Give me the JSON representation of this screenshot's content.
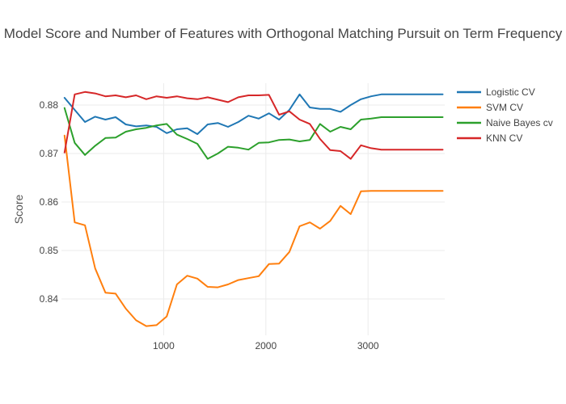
{
  "figure": {
    "title": "Model Score and Number of Features with Orthogonal Matching Pursuit on Term Frequency"
  },
  "chart_data": {
    "type": "line",
    "title": "Model Score and Number of Features with Orthogonal Matching Pursuit on Term Frequency",
    "xlabel": "",
    "ylabel": "Score",
    "grid": true,
    "legend_position": "right",
    "xlim": [
      0,
      3750
    ],
    "ylim": [
      0.8325,
      0.8845
    ],
    "xticks": [
      1000,
      2000,
      3000
    ],
    "yticks": [
      0.84,
      0.85,
      0.86,
      0.87,
      0.88
    ],
    "x": [
      30,
      130,
      230,
      330,
      430,
      530,
      630,
      730,
      830,
      930,
      1030,
      1130,
      1230,
      1330,
      1430,
      1530,
      1630,
      1730,
      1830,
      1930,
      2030,
      2130,
      2230,
      2330,
      2430,
      2530,
      2630,
      2730,
      2830,
      2930,
      3030,
      3130,
      3230,
      3330,
      3430,
      3530,
      3630,
      3730
    ],
    "series": [
      {
        "name": "Logistic CV",
        "color": "#1f77b4",
        "values": [
          0.8815,
          0.879,
          0.8765,
          0.8776,
          0.877,
          0.8775,
          0.876,
          0.8756,
          0.8758,
          0.8755,
          0.8742,
          0.875,
          0.8752,
          0.874,
          0.876,
          0.8763,
          0.8755,
          0.8765,
          0.8778,
          0.8772,
          0.8783,
          0.877,
          0.879,
          0.8822,
          0.8795,
          0.8792,
          0.8792,
          0.8786,
          0.88,
          0.8812,
          0.8818,
          0.8822,
          0.8822,
          0.8822,
          0.8822,
          0.8822,
          0.8822,
          0.8822
        ]
      },
      {
        "name": "SVM CV",
        "color": "#ff7f0e",
        "values": [
          0.8737,
          0.8558,
          0.8552,
          0.8463,
          0.8413,
          0.8411,
          0.838,
          0.8356,
          0.8344,
          0.8346,
          0.8364,
          0.843,
          0.8448,
          0.8442,
          0.8425,
          0.8424,
          0.843,
          0.8439,
          0.8443,
          0.8447,
          0.8472,
          0.8473,
          0.8497,
          0.855,
          0.8558,
          0.8545,
          0.8561,
          0.8592,
          0.8575,
          0.8622,
          0.8623,
          0.8623,
          0.8623,
          0.8623,
          0.8623,
          0.8623,
          0.8623,
          0.8623
        ]
      },
      {
        "name": "Naive Bayes cv",
        "color": "#2ca02c",
        "values": [
          0.8794,
          0.8722,
          0.8697,
          0.8716,
          0.8732,
          0.8733,
          0.8745,
          0.875,
          0.8753,
          0.8758,
          0.8761,
          0.8739,
          0.873,
          0.872,
          0.8689,
          0.87,
          0.8714,
          0.8712,
          0.8708,
          0.8722,
          0.8723,
          0.8728,
          0.8729,
          0.8725,
          0.8728,
          0.8761,
          0.8745,
          0.8755,
          0.875,
          0.877,
          0.8772,
          0.8775,
          0.8775,
          0.8775,
          0.8775,
          0.8775,
          0.8775,
          0.8775
        ]
      },
      {
        "name": "KNN CV",
        "color": "#d62728",
        "values": [
          0.8702,
          0.8822,
          0.8827,
          0.8824,
          0.8818,
          0.882,
          0.8816,
          0.882,
          0.8812,
          0.8818,
          0.8815,
          0.8818,
          0.8814,
          0.8812,
          0.8816,
          0.8811,
          0.8806,
          0.8816,
          0.882,
          0.882,
          0.8821,
          0.878,
          0.8787,
          0.877,
          0.8761,
          0.873,
          0.8707,
          0.8705,
          0.8689,
          0.8717,
          0.8711,
          0.8708,
          0.8708,
          0.8708,
          0.8708,
          0.8708,
          0.8708,
          0.8708
        ]
      }
    ],
    "style": {
      "grid_color": "#ebebeb",
      "tick_label_color": "#444444",
      "axis_title_color": "#555555",
      "title_color": "#444444",
      "background": "#ffffff"
    }
  }
}
